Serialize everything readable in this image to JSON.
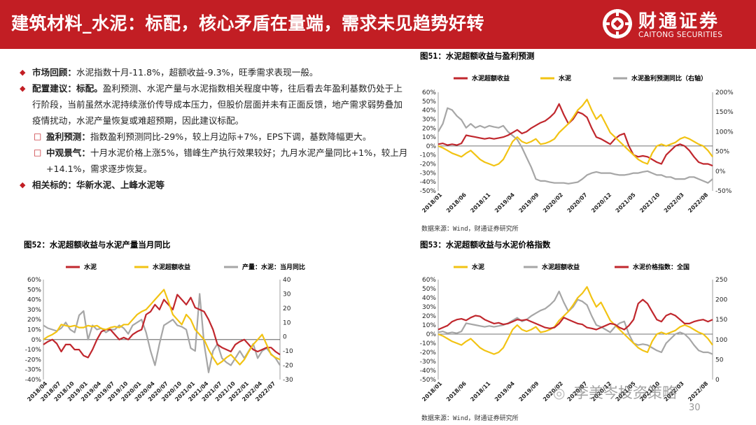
{
  "header": {
    "title": "建筑材料_水泥：标配，核心矛盾在量端，需求未见趋势好转"
  },
  "logo": {
    "name_cn": "财通证券",
    "name_en": "CAITONG SECURITIES",
    "icon": "caitong-logo-icon",
    "color": "#c21e24"
  },
  "bullets": [
    {
      "key": "市场回顾：",
      "text": "水泥指数十月-11.8%，超额收益-9.3%，旺季需求表现一般。"
    },
    {
      "key": "配置建议：标配。",
      "text": "盈利预测、水泥产量与水泥指数相关程度中等，往后看去年盈利基数仍处于上行阶段，当前虽然水泥持续涨价传导成本压力，但股价层面并未有正面反馈，地产需求弱势叠加疫情扰动，水泥产量恢复或难超预期，因此建议标配。"
    },
    {
      "key": "盈利预测：",
      "text": "指数盈利预测同比-29%，较上月边际+7%，EPS下调，基数降幅更大。",
      "sub": true
    },
    {
      "key": "中观景气：",
      "text": "十月水泥价格上涨5%，错峰生产执行效果较好；九月水泥产量同比+1%，较上月+14.1%，需求逐步恢复。",
      "sub": true
    },
    {
      "key": "相关标的：华新水泥、上峰水泥等",
      "text": ""
    }
  ],
  "chart_data": [
    {
      "id": "fig51",
      "type": "line",
      "title": "图51：水泥超额收益与盈利预测",
      "source": "数据来源：Wind，财通证券研究所",
      "x_labels": [
        "2018/01",
        "2018/06",
        "2018/11",
        "2019/04",
        "2019/09",
        "2020/02",
        "2020/07",
        "2020/12",
        "2021/05",
        "2021/10",
        "2022/03",
        "2022/08"
      ],
      "ylim": [
        -50,
        60
      ],
      "yticks": [
        "60%",
        "50%",
        "40%",
        "30%",
        "20%",
        "10%",
        "0%",
        "-10%",
        "-20%",
        "-30%",
        "-40%",
        "-50%"
      ],
      "ylim_right": [
        -50,
        200
      ],
      "yticks_right": [
        "200%",
        "150%",
        "100%",
        "50%",
        "0%",
        "-50%"
      ],
      "series": [
        {
          "name": "水泥超额收益",
          "color": "#c0272d",
          "axis": "left",
          "values": [
            2,
            3,
            1,
            2,
            1,
            3,
            12,
            11,
            10,
            9,
            8,
            9,
            8,
            9,
            10,
            12,
            15,
            18,
            14,
            16,
            20,
            23,
            26,
            28,
            32,
            37,
            47,
            35,
            25,
            30,
            38,
            36,
            32,
            20,
            10,
            8,
            5,
            2,
            8,
            12,
            14,
            0,
            -10,
            -12,
            -11,
            -12,
            -15,
            -18,
            -20,
            -10,
            -5,
            0,
            2,
            0,
            -5,
            -12,
            -18,
            -20,
            -20,
            -22
          ]
        },
        {
          "name": "水泥",
          "color": "#f2c313",
          "axis": "left",
          "values": [
            0,
            -2,
            -5,
            -8,
            -10,
            -12,
            -8,
            -5,
            -10,
            -15,
            -18,
            -20,
            -22,
            -20,
            -15,
            -5,
            5,
            10,
            5,
            3,
            5,
            8,
            2,
            3,
            5,
            8,
            15,
            20,
            25,
            32,
            40,
            45,
            52,
            40,
            30,
            35,
            25,
            15,
            10,
            5,
            0,
            -5,
            -10,
            -15,
            -18,
            -20,
            -8,
            0,
            2,
            0,
            2,
            4,
            8,
            10,
            8,
            5,
            2,
            0,
            -5,
            -12
          ]
        },
        {
          "name": "水泥盈利预测同比（右轴）",
          "color": "#a6a6a6",
          "axis": "right",
          "values": [
            100,
            120,
            160,
            155,
            140,
            130,
            110,
            120,
            110,
            115,
            110,
            115,
            112,
            110,
            115,
            100,
            90,
            80,
            60,
            35,
            10,
            -20,
            -25,
            -25,
            -28,
            -30,
            -30,
            -30,
            -32,
            -30,
            -28,
            -20,
            -10,
            -5,
            -2,
            -5,
            -5,
            -5,
            -8,
            -10,
            -10,
            -8,
            -5,
            -5,
            -2,
            0,
            -5,
            -10,
            -10,
            -15,
            -15,
            -20,
            -20,
            -20,
            -15,
            -15,
            -20,
            -25,
            -30,
            -20
          ]
        }
      ]
    },
    {
      "id": "fig52",
      "type": "line",
      "title": "图52：水泥超额收益与水泥产量当月同比",
      "x_labels": [
        "2018/04",
        "2018/07",
        "2018/10",
        "2019/01",
        "2019/04",
        "2019/07",
        "2019/10",
        "2020/01",
        "2020/04",
        "2020/07",
        "2020/10",
        "2021/01",
        "2021/04",
        "2021/07",
        "2021/10",
        "2022/01",
        "2022/04",
        "2022/07"
      ],
      "ylim": [
        -40,
        60
      ],
      "yticks": [
        "60%",
        "50%",
        "40%",
        "30%",
        "20%",
        "10%",
        "0%",
        "-10%",
        "-20%",
        "-30%",
        "-40%"
      ],
      "ylim_right": [
        -30,
        40
      ],
      "yticks_right": [
        "40",
        "30",
        "20",
        "10",
        "0",
        "-10",
        "-20",
        "-30"
      ],
      "series": [
        {
          "name": "水泥",
          "color": "#c0272d",
          "axis": "left",
          "values": [
            -5,
            -2,
            0,
            -4,
            -12,
            -5,
            -5,
            -10,
            -10,
            -16,
            -18,
            -10,
            0,
            8,
            10,
            10,
            5,
            0,
            2,
            0,
            5,
            8,
            10,
            25,
            28,
            35,
            30,
            40,
            35,
            30,
            45,
            40,
            35,
            42,
            32,
            30,
            28,
            20,
            10,
            -5,
            -8,
            -10,
            -12,
            -5,
            -2,
            0,
            -5,
            -10,
            -12,
            -10,
            -8,
            -8,
            -12,
            -15
          ]
        },
        {
          "name": "水泥超额收益",
          "color": "#f2c313",
          "axis": "left",
          "values": [
            0,
            3,
            5,
            8,
            15,
            14,
            13,
            14,
            12,
            12,
            14,
            13,
            14,
            11,
            10,
            12,
            13,
            12,
            15,
            15,
            20,
            25,
            28,
            30,
            35,
            40,
            45,
            50,
            38,
            25,
            20,
            15,
            25,
            20,
            10,
            5,
            0,
            -10,
            -18,
            -25,
            -22,
            -18,
            -15,
            -20,
            -25,
            -20,
            -12,
            -5,
            0,
            5,
            -5,
            -15,
            -18,
            -20
          ]
        },
        {
          "name": "产量：水泥：当月同比",
          "color": "#a6a6a6",
          "axis": "right",
          "values": [
            8,
            6,
            5,
            4,
            6,
            10,
            5,
            3,
            15,
            18,
            -2,
            8,
            5,
            6,
            3,
            5,
            5,
            8,
            6,
            2,
            8,
            10,
            12,
            3,
            -10,
            -20,
            -5,
            8,
            10,
            12,
            8,
            7,
            5,
            -8,
            -10,
            30,
            -5,
            -25,
            -10,
            -5,
            -15,
            -18,
            -20,
            -15,
            -10,
            -15,
            -10,
            -5,
            -15,
            -10,
            -8,
            -12,
            -15,
            -20
          ]
        }
      ]
    },
    {
      "id": "fig53",
      "type": "line",
      "title": "图53：水泥超额收益与水泥价格指数",
      "source": "数据来源：Wind，财通证券研究所",
      "x_labels": [
        "2018/01",
        "2018/06",
        "2018/11",
        "2019/04",
        "2019/09",
        "2020/02",
        "2020/07",
        "2020/12",
        "2021/05",
        "2021/10",
        "2022/03",
        "2022/08"
      ],
      "ylim": [
        -50,
        60
      ],
      "yticks": [
        "60%",
        "50%",
        "40%",
        "30%",
        "20%",
        "10%",
        "0%",
        "-10%",
        "-20%",
        "-30%",
        "-40%",
        "-50%"
      ],
      "ylim_right": [
        0,
        250
      ],
      "yticks_right": [
        "250",
        "200",
        "150",
        "100",
        "50",
        "0"
      ],
      "series": [
        {
          "name": "水泥",
          "color": "#f2c313",
          "axis": "left",
          "values": [
            0,
            -2,
            -5,
            -8,
            -10,
            -12,
            -8,
            -5,
            -10,
            -15,
            -18,
            -20,
            -22,
            -20,
            -15,
            -5,
            5,
            10,
            5,
            3,
            5,
            8,
            2,
            3,
            5,
            8,
            15,
            20,
            25,
            32,
            40,
            45,
            52,
            40,
            30,
            35,
            25,
            15,
            10,
            5,
            0,
            -5,
            -10,
            -15,
            -18,
            -20,
            -8,
            0,
            2,
            0,
            2,
            4,
            8,
            10,
            8,
            5,
            2,
            0,
            -5,
            -12
          ]
        },
        {
          "name": "水泥超额收益",
          "color": "#a6a6a6",
          "axis": "left",
          "values": [
            2,
            3,
            1,
            2,
            1,
            3,
            12,
            11,
            10,
            9,
            8,
            9,
            8,
            9,
            10,
            12,
            15,
            18,
            14,
            16,
            20,
            23,
            26,
            28,
            32,
            37,
            47,
            35,
            25,
            30,
            38,
            36,
            32,
            20,
            10,
            8,
            5,
            2,
            8,
            12,
            14,
            0,
            -10,
            -12,
            -11,
            -12,
            -15,
            -18,
            -20,
            -10,
            -5,
            0,
            2,
            0,
            -5,
            -12,
            -18,
            -20,
            -20,
            -22
          ]
        },
        {
          "name": "水泥价格指数：全国",
          "color": "#c0272d",
          "axis": "right",
          "values": [
            125,
            130,
            135,
            145,
            150,
            152,
            148,
            155,
            160,
            158,
            150,
            145,
            140,
            142,
            138,
            140,
            145,
            150,
            148,
            150,
            145,
            140,
            135,
            130,
            128,
            130,
            140,
            155,
            150,
            145,
            140,
            138,
            130,
            128,
            125,
            130,
            135,
            140,
            138,
            130,
            125,
            135,
            150,
            190,
            200,
            190,
            170,
            150,
            145,
            160,
            165,
            160,
            150,
            140,
            140,
            145,
            148,
            150,
            145,
            150
          ]
        }
      ]
    }
  ],
  "footer": {
    "page_number": "30",
    "watermark": "李美岑投资策略"
  }
}
